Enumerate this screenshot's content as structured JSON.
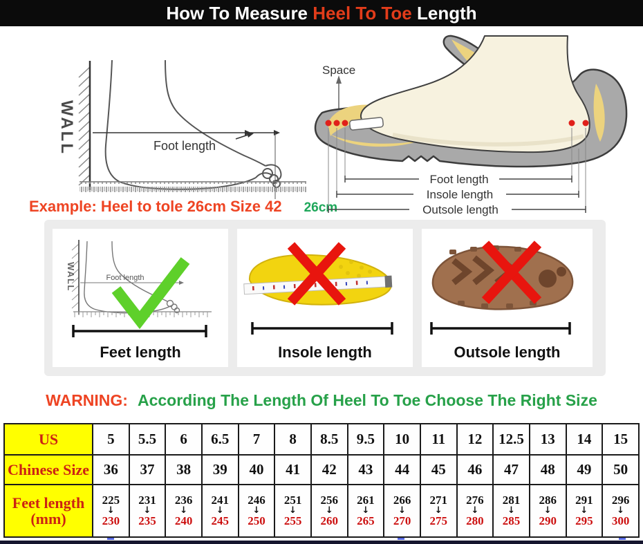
{
  "header": {
    "prefix": "How To Measure ",
    "highlight": "Heel To Toe",
    "suffix": " Length"
  },
  "measure_diagram": {
    "wall_label": "WALL",
    "foot_length_label": "Foot length",
    "example_text": "Example: Heel to tole 26cm Size 42",
    "example_value": "26cm"
  },
  "shoe_diagram": {
    "space_label": "Space",
    "foot_length_label": "Foot length",
    "insole_length_label": "Insole length",
    "outsole_length_label": "Outsole length"
  },
  "panels": [
    {
      "label": "Feet length",
      "mark": "check",
      "wall_label": "WALL",
      "inner_label": "Foot length"
    },
    {
      "label": "Insole length",
      "mark": "cross"
    },
    {
      "label": "Outsole length",
      "mark": "cross"
    }
  ],
  "warning": {
    "label": "WARNING:",
    "message": "According The Length Of Heel To Toe Choose The Right Size"
  },
  "size_table": {
    "us_label": "US",
    "cn_label": "Chinese Size",
    "feet_label_line1": "Feet length",
    "feet_label_line2": "(mm)",
    "arrow": "↓",
    "us_sizes": [
      "5",
      "5.5",
      "6",
      "6.5",
      "7",
      "8",
      "8.5",
      "9.5",
      "10",
      "11",
      "12",
      "12.5",
      "13",
      "14",
      "15"
    ],
    "chinese_sizes": [
      "36",
      "37",
      "38",
      "39",
      "40",
      "41",
      "42",
      "43",
      "44",
      "45",
      "46",
      "47",
      "48",
      "49",
      "50"
    ],
    "feet_length_mm": [
      {
        "from": "225",
        "to": "230"
      },
      {
        "from": "231",
        "to": "235"
      },
      {
        "from": "236",
        "to": "240"
      },
      {
        "from": "241",
        "to": "245"
      },
      {
        "from": "246",
        "to": "250"
      },
      {
        "from": "251",
        "to": "255"
      },
      {
        "from": "256",
        "to": "260"
      },
      {
        "from": "261",
        "to": "265"
      },
      {
        "from": "266",
        "to": "270"
      },
      {
        "from": "271",
        "to": "275"
      },
      {
        "from": "276",
        "to": "280"
      },
      {
        "from": "281",
        "to": "285"
      },
      {
        "from": "286",
        "to": "290"
      },
      {
        "from": "291",
        "to": "295"
      },
      {
        "from": "296",
        "to": "300"
      }
    ]
  },
  "colors": {
    "header_bg": "#0b0b0b",
    "accent_red": "#ee4423",
    "accent_green": "#27a149",
    "highlight_yellow": "#ffff00",
    "table_label_red": "#cc2213",
    "table_value_red": "#cc0f0f",
    "check_green": "#5ed02a",
    "cross_red": "#e8150e",
    "shoe_grey": "#a9a9a9",
    "insole_yellow": "#f2d410",
    "outsole_brown": "#a0704e"
  }
}
